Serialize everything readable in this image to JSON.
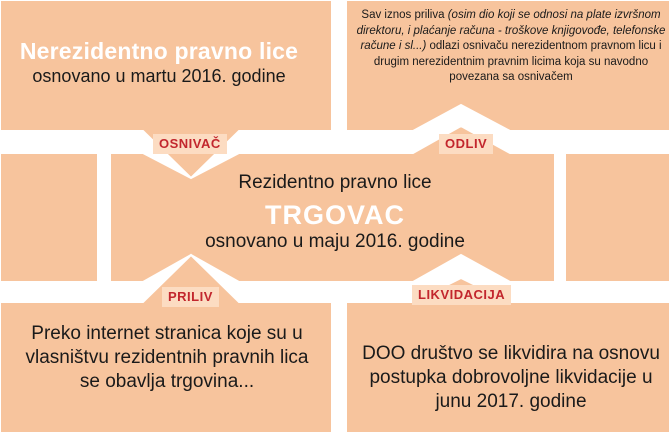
{
  "colors": {
    "panel_fill": "#f7c49d",
    "panel_outline": "#ffffff",
    "tag_background": "#fcdcc2",
    "tag_text": "#c2262d",
    "body_text": "#1a1a1a",
    "title_text": "#ffffff"
  },
  "top_left": {
    "title": "Nerezidentno pravno lice",
    "subtitle": "osnovano u martu 2016. godine"
  },
  "top_right": {
    "text_lead": "Sav iznos priliva ",
    "text_italic": "(osim dio koji se odnosi na plate izvršnom direktoru, i plaćanje računa - troškove knjigovođe, telefonske račune i sl...)",
    "text_rest": " odlazi osnivaču nerezidentnom pravnom licu i drugim nerezidentnim pravnim licima koja su navodno povezana sa osnivačem"
  },
  "center": {
    "line1": "Rezidentno pravno lice",
    "title": "TRGOVAC",
    "subtitle": "osnovano u maju 2016. godine"
  },
  "bottom_left": {
    "text": "Preko internet stranica koje su u vlasništvu rezidentnih pravnih lica se obavlja trgovina..."
  },
  "bottom_right": {
    "text": "DOO društvo se likvidira na osnovu postupka dobrovoljne likvidacije u junu 2017. godine"
  },
  "tags": {
    "osnivac": "OSNIVAČ",
    "odliv": "ODLIV",
    "priliv": "PRILIV",
    "likvidacija": "LIKVIDACIJA"
  }
}
